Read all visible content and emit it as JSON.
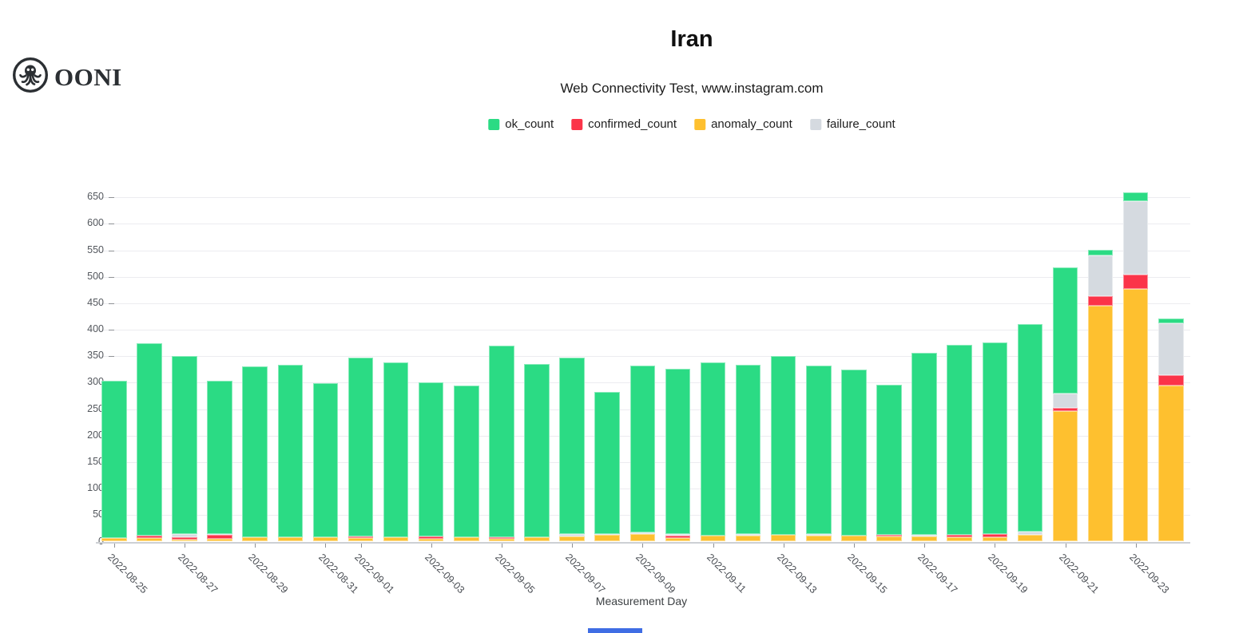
{
  "logo": {
    "text": "OONI"
  },
  "header": {
    "title": "Iran",
    "subtitle": "Web Connectivity Test, www.instagram.com"
  },
  "legend": {
    "items": [
      {
        "label": "ok_count",
        "color": "#2bdb84"
      },
      {
        "label": "confirmed_count",
        "color": "#fb3449"
      },
      {
        "label": "anomaly_count",
        "color": "#fec02f"
      },
      {
        "label": "failure_count",
        "color": "#d5dae0"
      }
    ]
  },
  "chart_data": {
    "type": "bar",
    "stacked": true,
    "title": "Iran",
    "subtitle": "Web Connectivity Test, www.instagram.com",
    "xlabel": "Measurement Day",
    "ylabel": "",
    "ylim": [
      0,
      663
    ],
    "y_ticks": [
      0,
      50,
      100,
      150,
      200,
      250,
      300,
      350,
      400,
      450,
      500,
      550,
      600,
      650
    ],
    "grid": true,
    "legend_position": "top",
    "stack_order_bottom_to_top": [
      "anomaly_count",
      "confirmed_count",
      "failure_count",
      "ok_count"
    ],
    "categories": [
      "2022-08-25",
      "2022-08-26",
      "2022-08-27",
      "2022-08-28",
      "2022-08-29",
      "2022-08-30",
      "2022-08-31",
      "2022-09-01",
      "2022-09-02",
      "2022-09-03",
      "2022-09-04",
      "2022-09-05",
      "2022-09-06",
      "2022-09-07",
      "2022-09-08",
      "2022-09-09",
      "2022-09-10",
      "2022-09-11",
      "2022-09-12",
      "2022-09-13",
      "2022-09-14",
      "2022-09-15",
      "2022-09-16",
      "2022-09-17",
      "2022-09-18",
      "2022-09-19",
      "2022-09-20",
      "2022-09-21",
      "2022-09-22",
      "2022-09-23",
      "2022-09-24"
    ],
    "x_tick_labels_shown": [
      "2022-08-25",
      "2022-08-27",
      "2022-08-29",
      "2022-08-31",
      "2022-09-01",
      "2022-09-03",
      "2022-09-05",
      "2022-09-07",
      "2022-09-09",
      "2022-09-11",
      "2022-09-13",
      "2022-09-15",
      "2022-09-17",
      "2022-09-19",
      "2022-09-21",
      "2022-09-23"
    ],
    "series": [
      {
        "name": "ok_count",
        "color": "#2bdb84",
        "values": [
          297,
          363,
          337,
          288,
          322,
          326,
          290,
          337,
          330,
          291,
          287,
          362,
          328,
          333,
          267,
          316,
          312,
          328,
          319,
          338,
          317,
          314,
          283,
          344,
          359,
          361,
          392,
          239,
          11,
          18,
          9
        ]
      },
      {
        "name": "confirmed_count",
        "color": "#fb3449",
        "values": [
          0,
          5,
          5,
          8,
          0,
          0,
          0,
          3,
          0,
          4,
          0,
          3,
          0,
          0,
          0,
          0,
          4,
          0,
          0,
          0,
          0,
          0,
          3,
          0,
          4,
          6,
          0,
          5,
          19,
          27,
          19
        ]
      },
      {
        "name": "anomaly_count",
        "color": "#fec02f",
        "values": [
          7,
          7,
          4,
          5,
          9,
          8,
          9,
          7,
          8,
          6,
          8,
          5,
          8,
          10,
          13,
          15,
          7,
          11,
          12,
          13,
          12,
          11,
          10,
          10,
          9,
          9,
          13,
          247,
          445,
          477,
          295
        ]
      },
      {
        "name": "failure_count",
        "color": "#d5dae0",
        "values": [
          0,
          0,
          5,
          2,
          0,
          0,
          0,
          0,
          0,
          0,
          0,
          0,
          0,
          4,
          2,
          2,
          3,
          0,
          3,
          0,
          3,
          0,
          0,
          3,
          0,
          0,
          6,
          27,
          76,
          138,
          98
        ]
      }
    ]
  }
}
